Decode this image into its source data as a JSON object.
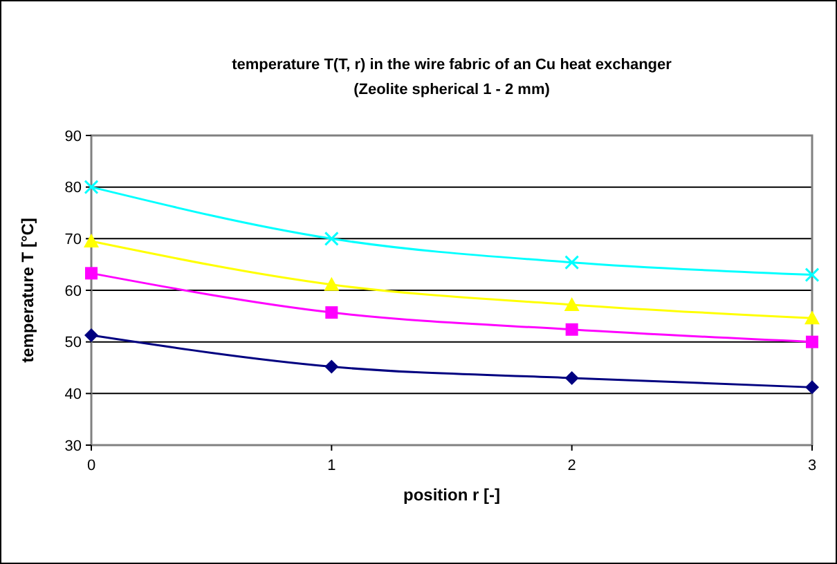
{
  "chart_data": {
    "type": "line",
    "title": "temperature T(T, r) in the wire fabric of an Cu heat exchanger",
    "subtitle": "(Zeolite spherical 1 - 2 mm)",
    "xlabel": "position r [-]",
    "ylabel": "temperature T [°C]",
    "x": [
      0,
      1,
      2,
      3
    ],
    "xlim": [
      0,
      3
    ],
    "xticks": [
      0,
      1,
      2,
      3
    ],
    "ylim": [
      30,
      90
    ],
    "yticks": [
      30,
      40,
      50,
      60,
      70,
      80,
      90
    ],
    "grid": "y",
    "line_style": "solid",
    "series": [
      {
        "color": "#000080",
        "marker": "diamond",
        "values": [
          51.3,
          45.2,
          43.0,
          41.2
        ]
      },
      {
        "color": "#ff00ff",
        "marker": "square",
        "values": [
          63.3,
          55.7,
          52.4,
          50.0
        ]
      },
      {
        "color": "#ffff00",
        "marker": "triangle",
        "values": [
          69.5,
          61.1,
          57.2,
          54.6
        ]
      },
      {
        "color": "#00ffff",
        "marker": "cross",
        "values": [
          80,
          70,
          65.4,
          63.0
        ]
      }
    ]
  }
}
